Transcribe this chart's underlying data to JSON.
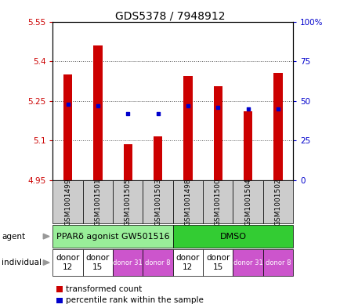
{
  "title": "GDS5378 / 7948912",
  "samples": [
    "GSM1001499",
    "GSM1001501",
    "GSM1001505",
    "GSM1001503",
    "GSM1001498",
    "GSM1001500",
    "GSM1001504",
    "GSM1001502"
  ],
  "transformed_counts": [
    5.35,
    5.46,
    5.085,
    5.115,
    5.345,
    5.305,
    5.21,
    5.355
  ],
  "percentile_ranks": [
    48,
    47,
    42,
    42,
    47,
    46,
    45,
    45
  ],
  "ylim_left": [
    4.95,
    5.55
  ],
  "ylim_right": [
    0,
    100
  ],
  "yticks_left": [
    4.95,
    5.1,
    5.25,
    5.4,
    5.55
  ],
  "ytick_labels_left": [
    "4.95",
    "5.1",
    "5.25",
    "5.4",
    "5.55"
  ],
  "yticks_right": [
    0,
    25,
    50,
    75,
    100
  ],
  "ytick_labels_right": [
    "0",
    "25",
    "50",
    "75",
    "100%"
  ],
  "bar_color": "#cc0000",
  "dot_color": "#0000cc",
  "base_value": 4.95,
  "bar_width": 0.3,
  "agents": [
    {
      "label": "PPARδ agonist GW501516",
      "start": 0,
      "end": 4,
      "color": "#99ee99"
    },
    {
      "label": "DMSO",
      "start": 4,
      "end": 8,
      "color": "#33cc33"
    }
  ],
  "individuals": [
    {
      "label": "donor\n12",
      "start": 0,
      "end": 1,
      "color": "#ffffff",
      "fontcolor": "#000000",
      "small": false
    },
    {
      "label": "donor\n15",
      "start": 1,
      "end": 2,
      "color": "#ffffff",
      "fontcolor": "#000000",
      "small": false
    },
    {
      "label": "donor 31",
      "start": 2,
      "end": 3,
      "color": "#cc55cc",
      "fontcolor": "#ffffff",
      "small": true
    },
    {
      "label": "donor 8",
      "start": 3,
      "end": 4,
      "color": "#cc55cc",
      "fontcolor": "#ffffff",
      "small": true
    },
    {
      "label": "donor\n12",
      "start": 4,
      "end": 5,
      "color": "#ffffff",
      "fontcolor": "#000000",
      "small": false
    },
    {
      "label": "donor\n15",
      "start": 5,
      "end": 6,
      "color": "#ffffff",
      "fontcolor": "#000000",
      "small": false
    },
    {
      "label": "donor 31",
      "start": 6,
      "end": 7,
      "color": "#cc55cc",
      "fontcolor": "#ffffff",
      "small": true
    },
    {
      "label": "donor 8",
      "start": 7,
      "end": 8,
      "color": "#cc55cc",
      "fontcolor": "#ffffff",
      "small": true
    }
  ],
  "legend_bar_color": "#cc0000",
  "legend_dot_color": "#0000cc",
  "legend_bar_label": "transformed count",
  "legend_dot_label": "percentile rank within the sample",
  "grid_color": "#555555",
  "background_color": "#ffffff",
  "plot_bg_color": "#ffffff",
  "title_fontsize": 10,
  "tick_fontsize": 7.5,
  "sample_label_fontsize": 6.5,
  "agent_fontsize": 8,
  "individual_fontsize": 7.5,
  "individual_small_fontsize": 6
}
